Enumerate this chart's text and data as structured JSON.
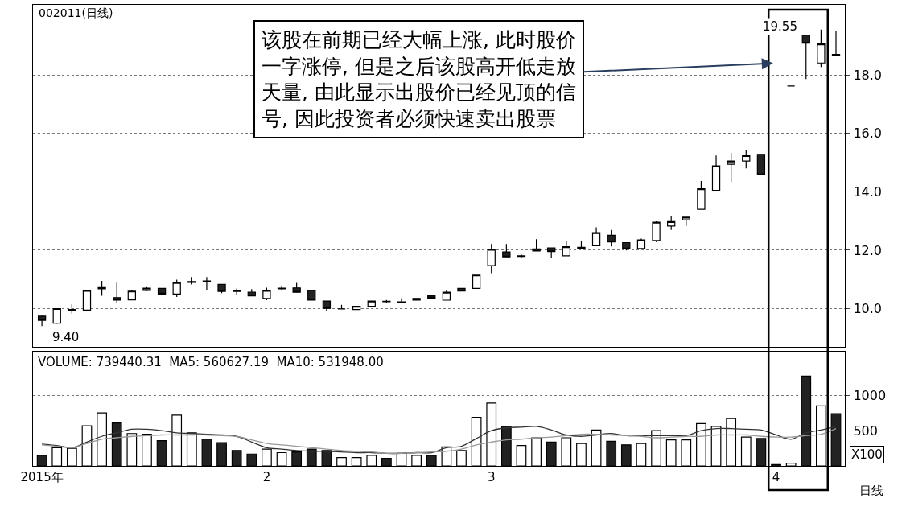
{
  "chart_data": [
    {
      "type": "candlestick",
      "title": "002011(日线)",
      "categories": [
        null,
        null,
        null,
        null,
        null,
        null,
        null,
        null,
        null,
        null,
        null,
        null,
        null,
        null,
        null,
        null,
        null,
        null,
        null,
        null,
        null,
        null,
        null,
        null,
        null,
        null,
        null,
        null,
        null,
        null,
        null,
        null,
        null,
        null,
        null,
        null,
        null,
        null,
        null,
        null,
        null,
        null,
        null,
        null,
        null,
        null,
        null,
        null,
        null,
        null,
        null,
        null,
        null,
        null
      ],
      "ohlc": [
        [
          9.74,
          9.78,
          9.4,
          9.6
        ],
        [
          9.5,
          10.0,
          9.48,
          10.0
        ],
        [
          9.93,
          10.15,
          9.83,
          9.97
        ],
        [
          9.95,
          10.63,
          9.94,
          10.62
        ],
        [
          10.68,
          10.95,
          10.44,
          10.72
        ],
        [
          10.38,
          10.89,
          10.2,
          10.29
        ],
        [
          10.3,
          10.62,
          10.28,
          10.6
        ],
        [
          10.62,
          10.74,
          10.6,
          10.7
        ],
        [
          10.69,
          10.7,
          10.47,
          10.5
        ],
        [
          10.5,
          10.99,
          10.4,
          10.89
        ],
        [
          10.9,
          11.08,
          10.83,
          10.93
        ],
        [
          10.93,
          11.08,
          10.65,
          10.95
        ],
        [
          10.83,
          10.83,
          10.53,
          10.59
        ],
        [
          10.59,
          10.69,
          10.47,
          10.61
        ],
        [
          10.56,
          10.67,
          10.44,
          10.44
        ],
        [
          10.35,
          10.72,
          10.29,
          10.62
        ],
        [
          10.68,
          10.75,
          10.64,
          10.7
        ],
        [
          10.71,
          10.88,
          10.56,
          10.56
        ],
        [
          10.62,
          10.62,
          10.29,
          10.29
        ],
        [
          10.26,
          10.26,
          9.92,
          10.01
        ],
        [
          9.99,
          10.13,
          9.98,
          9.99
        ],
        [
          9.97,
          10.08,
          9.97,
          10.08
        ],
        [
          10.08,
          10.26,
          10.08,
          10.26
        ],
        [
          10.24,
          10.3,
          10.2,
          10.25
        ],
        [
          10.22,
          10.36,
          10.21,
          10.23
        ],
        [
          10.35,
          10.35,
          10.29,
          10.29
        ],
        [
          10.44,
          10.44,
          10.36,
          10.36
        ],
        [
          10.29,
          10.65,
          10.29,
          10.56
        ],
        [
          10.69,
          10.69,
          10.6,
          10.6
        ],
        [
          10.69,
          11.15,
          10.69,
          11.15
        ],
        [
          11.47,
          12.21,
          11.21,
          12.03
        ],
        [
          11.94,
          12.21,
          11.77,
          11.77
        ],
        [
          11.79,
          11.85,
          11.75,
          11.81
        ],
        [
          12.04,
          12.38,
          11.97,
          11.97
        ],
        [
          12.08,
          12.08,
          11.74,
          11.95
        ],
        [
          11.81,
          12.3,
          11.81,
          12.12
        ],
        [
          12.04,
          12.33,
          12.04,
          12.1
        ],
        [
          12.15,
          12.78,
          12.15,
          12.6
        ],
        [
          12.51,
          12.69,
          12.13,
          12.28
        ],
        [
          12.26,
          12.26,
          11.99,
          12.04
        ],
        [
          12.06,
          12.4,
          12.06,
          12.35
        ],
        [
          12.33,
          12.99,
          12.28,
          12.96
        ],
        [
          12.83,
          13.17,
          12.69,
          12.98
        ],
        [
          13.04,
          13.13,
          12.83,
          13.13
        ],
        [
          13.4,
          14.37,
          13.4,
          14.1
        ],
        [
          14.05,
          15.24,
          14.05,
          14.89
        ],
        [
          14.94,
          15.33,
          14.33,
          15.05
        ],
        [
          15.05,
          15.42,
          14.8,
          15.24
        ],
        [
          15.28,
          15.3,
          14.58,
          14.58
        ],
        null,
        [
          17.62,
          17.62,
          17.62,
          17.62
        ],
        [
          19.36,
          19.36,
          17.86,
          19.09
        ],
        [
          18.41,
          19.55,
          18.27,
          19.06
        ],
        [
          18.7,
          19.5,
          18.65,
          18.65
        ]
      ],
      "ylim": [
        8.7,
        20.4
      ],
      "yticks": [
        {
          "value": 10,
          "label": "10.0"
        },
        {
          "value": 12,
          "label": "12.0"
        },
        {
          "value": 14,
          "label": "14.0"
        },
        {
          "value": 16,
          "label": "16.0"
        },
        {
          "value": 18,
          "label": "18.0"
        }
      ],
      "grid": "y",
      "tick_labels": "y",
      "annotations": [
        "该股在前期已经大幅上涨, 此时股价一字涨停, 但是之后该股高开低走放天量, 由此显示出股价已经见顶的信号, 因此投资者必须快速卖出股票",
        "9.40",
        "19.55"
      ]
    },
    {
      "type": "bar",
      "categories": [
        "2015年",
        null,
        null,
        null,
        null,
        null,
        null,
        null,
        null,
        null,
        null,
        null,
        null,
        null,
        null,
        "2",
        null,
        null,
        null,
        null,
        null,
        null,
        null,
        null,
        null,
        null,
        null,
        null,
        null,
        null,
        "3",
        null,
        null,
        null,
        null,
        null,
        null,
        null,
        null,
        null,
        null,
        null,
        null,
        null,
        null,
        null,
        null,
        null,
        null,
        "4",
        null,
        null,
        null,
        null
      ],
      "series": [
        {
          "type": "bar",
          "values": [
            150,
            260,
            250,
            570,
            750,
            610,
            460,
            450,
            360,
            720,
            470,
            380,
            330,
            220,
            170,
            240,
            190,
            200,
            240,
            220,
            120,
            120,
            150,
            110,
            180,
            150,
            150,
            270,
            220,
            690,
            890,
            560,
            290,
            400,
            340,
            400,
            320,
            510,
            350,
            300,
            320,
            500,
            370,
            370,
            600,
            560,
            670,
            410,
            390,
            20,
            40,
            1270,
            850,
            740
          ],
          "colors": [
            "#222222",
            "#ffffff",
            "#ffffff",
            "#ffffff",
            "#ffffff",
            "#222222",
            "#ffffff",
            "#ffffff",
            "#222222",
            "#ffffff",
            "#ffffff",
            "#222222",
            "#222222",
            "#222222",
            "#222222",
            "#ffffff",
            "#ffffff",
            "#222222",
            "#222222",
            "#222222",
            "#ffffff",
            "#ffffff",
            "#ffffff",
            "#222222",
            "#ffffff",
            "#ffffff",
            "#222222",
            "#ffffff",
            "#ffffff",
            "#ffffff",
            "#ffffff",
            "#222222",
            "#ffffff",
            "#ffffff",
            "#222222",
            "#ffffff",
            "#ffffff",
            "#ffffff",
            "#222222",
            "#222222",
            "#ffffff",
            "#ffffff",
            "#ffffff",
            "#ffffff",
            "#ffffff",
            "#ffffff",
            "#ffffff",
            "#ffffff",
            "#222222",
            "#222222",
            "#ffffff",
            "#222222",
            "#ffffff",
            "#222222"
          ]
        },
        {
          "type": "line",
          "color": "#333333",
          "values": [
            310,
            290,
            260,
            340,
            420,
            470,
            520,
            520,
            500,
            470,
            460,
            450,
            440,
            420,
            340,
            260,
            240,
            220,
            210,
            210,
            200,
            190,
            190,
            180,
            180,
            190,
            190,
            260,
            280,
            390,
            500,
            540,
            550,
            560,
            510,
            440,
            420,
            440,
            460,
            430,
            430,
            430,
            430,
            430,
            500,
            530,
            530,
            520,
            510,
            440,
            380,
            470,
            510,
            560
          ]
        },
        {
          "type": "line",
          "color": "#999999",
          "values": [
            300,
            280,
            260,
            320,
            380,
            400,
            420,
            430,
            440,
            440,
            440,
            440,
            430,
            420,
            370,
            320,
            300,
            280,
            260,
            240,
            220,
            210,
            200,
            180,
            180,
            190,
            200,
            210,
            240,
            300,
            340,
            370,
            380,
            400,
            410,
            430,
            450,
            450,
            440,
            430,
            420,
            400,
            410,
            420,
            420,
            440,
            440,
            440,
            420,
            410,
            410,
            430,
            450,
            530
          ]
        }
      ],
      "ylim": [
        0,
        1620
      ],
      "yticks": [
        500,
        1000
      ],
      "grid": "y",
      "annotations": [
        "VOLUME: 739440.31  MA5: 560627.19  MA10: 531948.00",
        "X100",
        "日线"
      ]
    }
  ]
}
